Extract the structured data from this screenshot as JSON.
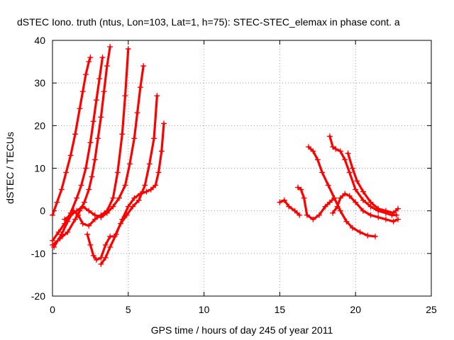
{
  "chart_data": {
    "type": "scatter",
    "title": "dSTEC Iono. truth (ntus, Lon=103, Lat=1, h=75): STEC-STEC_elemax in phase cont. a",
    "xlabel": "GPS time / hours of day 245 of year 2011",
    "ylabel": "dSTEC  / TECUs",
    "xlim": [
      0,
      25
    ],
    "ylim": [
      -20,
      40
    ],
    "xticks": [
      0,
      5,
      10,
      15,
      20,
      25
    ],
    "yticks": [
      -20,
      -10,
      0,
      10,
      20,
      30,
      40
    ],
    "grid": true,
    "marker": "plus",
    "color": "#ff0000",
    "series": [
      {
        "x": [
          0.0,
          0.3,
          0.6,
          0.9,
          1.2,
          1.5,
          1.8,
          2.0,
          2.2,
          2.4,
          2.5
        ],
        "y": [
          -1,
          2,
          5,
          9,
          13,
          18,
          24,
          28,
          32,
          35,
          36
        ]
      },
      {
        "x": [
          0.0,
          0.4,
          0.8,
          1.2,
          1.6,
          1.9,
          2.2,
          2.5,
          2.7,
          2.9,
          3.1,
          3.3
        ],
        "y": [
          -7,
          -5,
          -3,
          -0.5,
          3,
          6,
          10,
          16,
          21,
          26,
          31,
          36
        ]
      },
      {
        "x": [
          0.0,
          0.5,
          1.0,
          1.5,
          1.8,
          2.1,
          2.4,
          2.6,
          2.8,
          3.0,
          3.2,
          3.4,
          3.6,
          3.8
        ],
        "y": [
          -8,
          -6.5,
          -5,
          -2,
          0,
          2,
          5,
          8,
          12,
          17,
          22,
          28,
          34,
          38.5
        ]
      },
      {
        "x": [
          0.1,
          0.6,
          1.0,
          1.4,
          1.7,
          2.0,
          2.4,
          2.8,
          3.2,
          3.6,
          4.0,
          4.3,
          4.6,
          4.8,
          5.0
        ],
        "y": [
          -8.5,
          -5.5,
          -2.5,
          0,
          -1,
          -3,
          -3.5,
          -2,
          -1,
          0,
          3,
          9,
          18,
          27,
          38
        ]
      },
      {
        "x": [
          0.8,
          1.2,
          1.6,
          2.0,
          2.4,
          2.8,
          3.2,
          3.6,
          4.0,
          4.4,
          4.8,
          5.1,
          5.4,
          5.6,
          5.8,
          6.0
        ],
        "y": [
          -2,
          -1,
          0,
          1,
          0,
          -1,
          -1.5,
          -0.5,
          1,
          3,
          6,
          11,
          17,
          23,
          29,
          34
        ]
      },
      {
        "x": [
          2.3,
          2.5,
          2.7,
          2.9,
          3.2,
          3.5,
          3.8,
          4.1,
          4.5,
          4.9,
          5.3,
          5.7,
          6.1,
          6.4,
          6.7,
          6.9
        ],
        "y": [
          -5.5,
          -8,
          -10.5,
          -11.5,
          -11,
          -8,
          -6,
          -6,
          -3,
          -1,
          1,
          2.5,
          6,
          11,
          17,
          27
        ]
      },
      {
        "x": [
          3.2,
          3.5,
          3.8,
          4.2,
          4.6,
          5.0,
          5.4,
          5.8,
          6.2,
          6.5,
          6.8,
          7.0,
          7.2,
          7.35
        ],
        "y": [
          -12.5,
          -11,
          -8.5,
          -5.5,
          -2,
          1,
          3,
          4,
          4.5,
          5,
          6,
          9,
          14,
          20.5
        ]
      },
      {
        "x": [
          15.0,
          15.3,
          15.6,
          16.0,
          16.3
        ],
        "y": [
          2,
          2.5,
          1,
          0,
          -1
        ]
      },
      {
        "x": [
          16.2,
          16.4,
          16.6,
          16.8,
          17.2,
          17.6,
          18.0,
          18.3,
          18.6
        ],
        "y": [
          5.5,
          5,
          3,
          -1,
          -2,
          -1,
          1,
          2,
          3
        ]
      },
      {
        "x": [
          16.9,
          17.2,
          17.5,
          17.8,
          18.2,
          18.6,
          19.0,
          19.4,
          19.8,
          20.3,
          20.8,
          21.3
        ],
        "y": [
          15,
          14,
          12,
          9,
          6,
          3,
          0,
          -2.5,
          -4,
          -5,
          -5.8,
          -6
        ]
      },
      {
        "x": [
          18.3,
          18.5,
          18.7,
          19.0,
          19.3,
          19.6,
          20.0,
          20.5,
          21.0,
          21.5,
          22.0,
          22.4,
          22.7
        ],
        "y": [
          17.5,
          15,
          14.5,
          14,
          12,
          9,
          5,
          2.5,
          1,
          0,
          -0.5,
          -1,
          -1
        ]
      },
      {
        "x": [
          18.5,
          18.8,
          19.0,
          19.3,
          19.6,
          20.0,
          20.5,
          21.0,
          21.5,
          22.0,
          22.5,
          22.8
        ],
        "y": [
          -0.5,
          1,
          3,
          4,
          3.5,
          2,
          0,
          -1,
          -1.5,
          -2,
          -2.5,
          -2
        ]
      },
      {
        "x": [
          19.5,
          19.8,
          20.1,
          20.5,
          21.0,
          21.5,
          22.0,
          22.5,
          22.8
        ],
        "y": [
          13.5,
          10,
          7,
          4.5,
          2,
          0.5,
          0,
          -0.5,
          0.5
        ]
      }
    ]
  }
}
